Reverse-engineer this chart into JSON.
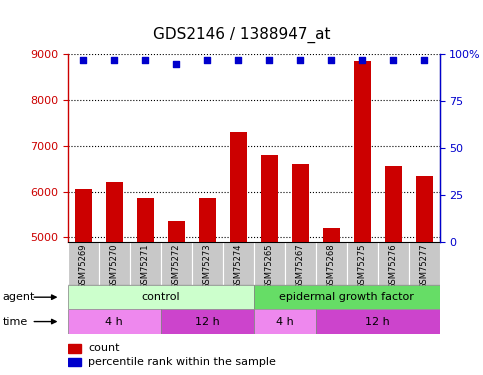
{
  "title": "GDS2146 / 1388947_at",
  "samples": [
    "GSM75269",
    "GSM75270",
    "GSM75271",
    "GSM75272",
    "GSM75273",
    "GSM75274",
    "GSM75265",
    "GSM75267",
    "GSM75268",
    "GSM75275",
    "GSM75276",
    "GSM75277"
  ],
  "counts": [
    6050,
    6200,
    5850,
    5350,
    5850,
    7300,
    6800,
    6600,
    5200,
    8850,
    6550,
    6350
  ],
  "percentile_ranks": [
    97,
    97,
    97,
    95,
    97,
    97,
    97,
    97,
    97,
    97,
    97,
    97
  ],
  "ylim_left": [
    4900,
    9000
  ],
  "ylim_right": [
    0,
    100
  ],
  "yticks_left": [
    5000,
    6000,
    7000,
    8000,
    9000
  ],
  "yticks_right": [
    0,
    25,
    50,
    75,
    100
  ],
  "bar_color": "#cc0000",
  "scatter_color": "#0000cc",
  "agent_control_label": "control",
  "agent_egf_label": "epidermal growth factor",
  "agent_control_color": "#ccffcc",
  "agent_egf_color": "#66dd66",
  "time_4h_light_color": "#ee88ee",
  "time_12h_dark_color": "#cc44cc",
  "bar_bottom": 4900,
  "left_axis_color": "#cc0000",
  "right_axis_color": "#0000cc",
  "grid_color": "#000000",
  "sample_bg_color": "#c8c8c8",
  "plot_bg_color": "#ffffff",
  "fig_bg_color": "#ffffff",
  "control_4h_count": 3,
  "control_12h_count": 3,
  "egf_4h_count": 2,
  "egf_12h_count": 4
}
